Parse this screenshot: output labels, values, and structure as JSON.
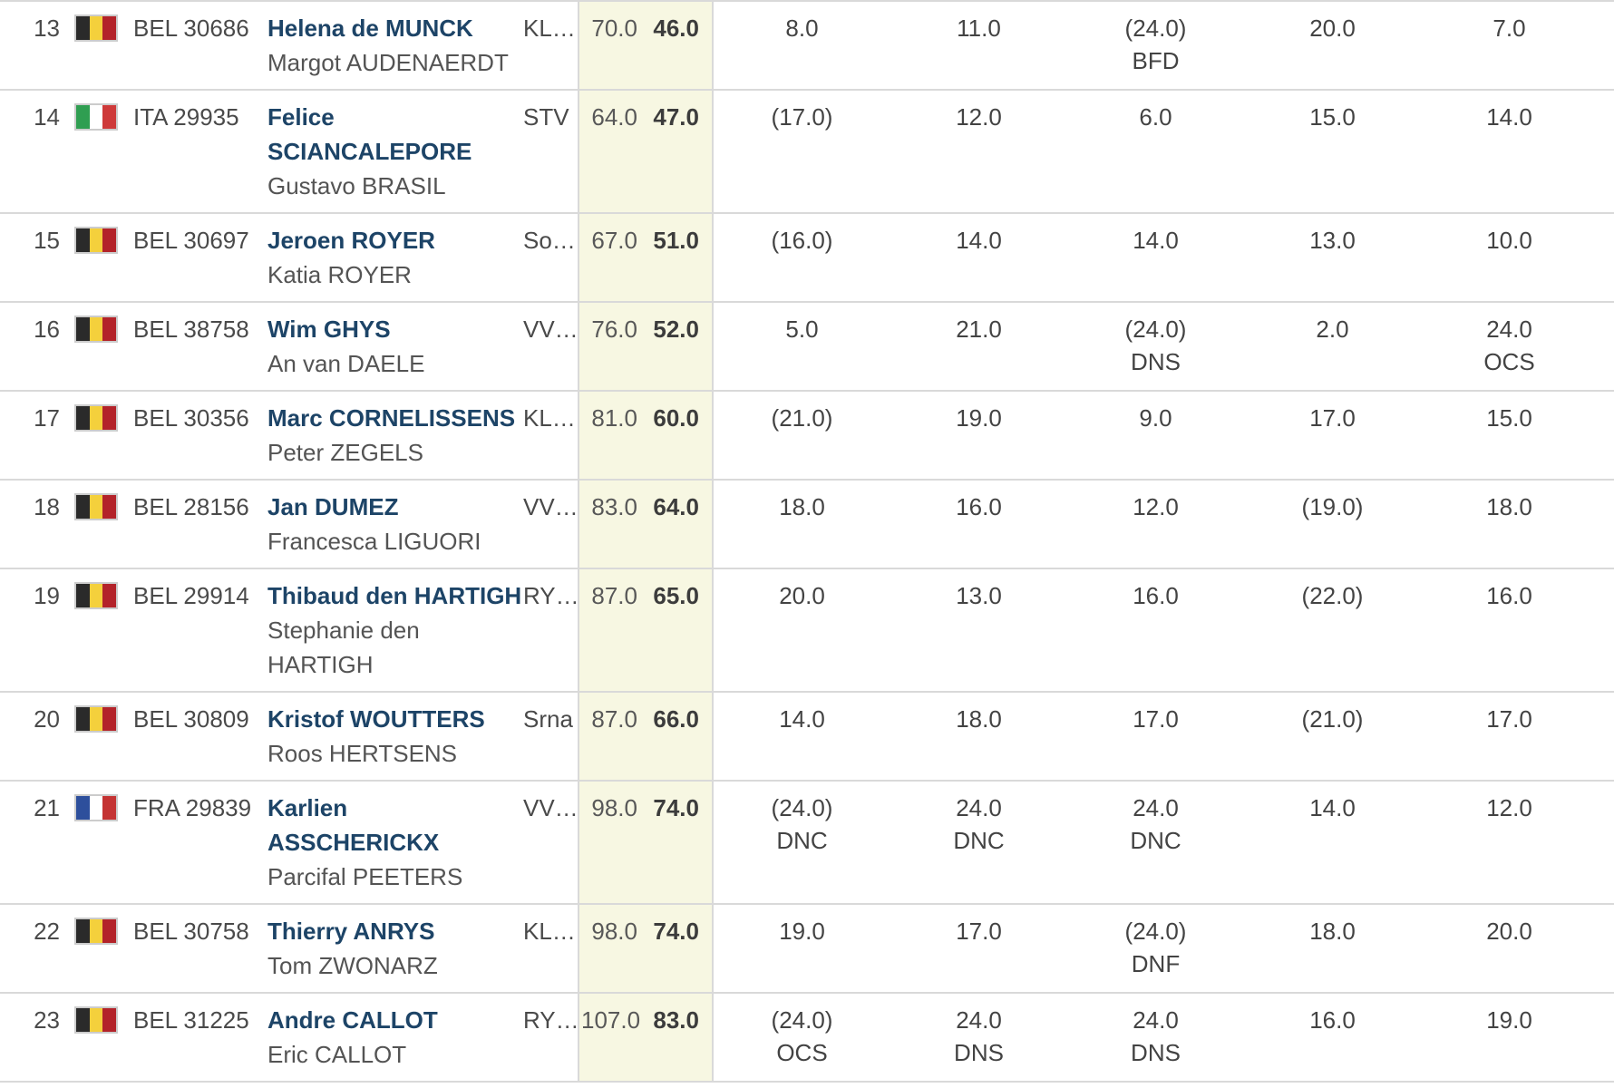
{
  "colors": {
    "row_border": "#d9d9d9",
    "totals_bg": "#f7f7e2",
    "skipper_link": "#1d4467",
    "body_text": "#4a4a4a",
    "crew_text": "#545454",
    "score_text": "#434343",
    "net_text": "#3c3c3c",
    "flag_border": "#cccccc"
  },
  "flags": {
    "BEL": [
      "#2a2a2a",
      "#f4d03c",
      "#b3232a"
    ],
    "ITA": [
      "#2f9e51",
      "#ffffff",
      "#ce3a3a"
    ],
    "FRA": [
      "#2d4f9c",
      "#ffffff",
      "#c43333"
    ]
  },
  "table": {
    "rows": [
      {
        "rank": "13",
        "country": "BEL",
        "sail": "BEL 30686",
        "skipper": "Helena de MUNCK",
        "crew": "Margot AUDENAERDT",
        "club": "KL…",
        "total": "70.0",
        "net": "46.0",
        "races": [
          {
            "score": "8.0",
            "code": ""
          },
          {
            "score": "11.0",
            "code": ""
          },
          {
            "score": "(24.0)",
            "code": "BFD"
          },
          {
            "score": "20.0",
            "code": ""
          },
          {
            "score": "7.0",
            "code": ""
          }
        ]
      },
      {
        "rank": "14",
        "country": "ITA",
        "sail": "ITA 29935",
        "skipper": "Felice\nSCIANCALEPORE",
        "crew": "Gustavo BRASIL",
        "club": "STV",
        "total": "64.0",
        "net": "47.0",
        "races": [
          {
            "score": "(17.0)",
            "code": ""
          },
          {
            "score": "12.0",
            "code": ""
          },
          {
            "score": "6.0",
            "code": ""
          },
          {
            "score": "15.0",
            "code": ""
          },
          {
            "score": "14.0",
            "code": ""
          }
        ]
      },
      {
        "rank": "15",
        "country": "BEL",
        "sail": "BEL 30697",
        "skipper": "Jeroen ROYER",
        "crew": "Katia ROYER",
        "club": "So…",
        "total": "67.0",
        "net": "51.0",
        "races": [
          {
            "score": "(16.0)",
            "code": ""
          },
          {
            "score": "14.0",
            "code": ""
          },
          {
            "score": "14.0",
            "code": ""
          },
          {
            "score": "13.0",
            "code": ""
          },
          {
            "score": "10.0",
            "code": ""
          }
        ]
      },
      {
        "rank": "16",
        "country": "BEL",
        "sail": "BEL 38758",
        "skipper": "Wim GHYS",
        "crew": "An van DAELE",
        "club": "VV…",
        "total": "76.0",
        "net": "52.0",
        "races": [
          {
            "score": "5.0",
            "code": ""
          },
          {
            "score": "21.0",
            "code": ""
          },
          {
            "score": "(24.0)",
            "code": "DNS"
          },
          {
            "score": "2.0",
            "code": ""
          },
          {
            "score": "24.0",
            "code": "OCS"
          }
        ]
      },
      {
        "rank": "17",
        "country": "BEL",
        "sail": "BEL 30356",
        "skipper": "Marc CORNELISSENS",
        "crew": "Peter ZEGELS",
        "club": "KL…",
        "total": "81.0",
        "net": "60.0",
        "races": [
          {
            "score": "(21.0)",
            "code": ""
          },
          {
            "score": "19.0",
            "code": ""
          },
          {
            "score": "9.0",
            "code": ""
          },
          {
            "score": "17.0",
            "code": ""
          },
          {
            "score": "15.0",
            "code": ""
          }
        ]
      },
      {
        "rank": "18",
        "country": "BEL",
        "sail": "BEL 28156",
        "skipper": "Jan DUMEZ",
        "crew": "Francesca LIGUORI",
        "club": "VV…",
        "total": "83.0",
        "net": "64.0",
        "races": [
          {
            "score": "18.0",
            "code": ""
          },
          {
            "score": "16.0",
            "code": ""
          },
          {
            "score": "12.0",
            "code": ""
          },
          {
            "score": "(19.0)",
            "code": ""
          },
          {
            "score": "18.0",
            "code": ""
          }
        ]
      },
      {
        "rank": "19",
        "country": "BEL",
        "sail": "BEL 29914",
        "skipper": "Thibaud den HARTIGH",
        "crew": "Stephanie den\nHARTIGH",
        "club": "RY…",
        "total": "87.0",
        "net": "65.0",
        "races": [
          {
            "score": "20.0",
            "code": ""
          },
          {
            "score": "13.0",
            "code": ""
          },
          {
            "score": "16.0",
            "code": ""
          },
          {
            "score": "(22.0)",
            "code": ""
          },
          {
            "score": "16.0",
            "code": ""
          }
        ]
      },
      {
        "rank": "20",
        "country": "BEL",
        "sail": "BEL 30809",
        "skipper": "Kristof WOUTTERS",
        "crew": "Roos HERTSENS",
        "club": "Srna",
        "total": "87.0",
        "net": "66.0",
        "races": [
          {
            "score": "14.0",
            "code": ""
          },
          {
            "score": "18.0",
            "code": ""
          },
          {
            "score": "17.0",
            "code": ""
          },
          {
            "score": "(21.0)",
            "code": ""
          },
          {
            "score": "17.0",
            "code": ""
          }
        ]
      },
      {
        "rank": "21",
        "country": "FRA",
        "sail": "FRA 29839",
        "skipper": "Karlien\nASSCHERICKX",
        "crew": "Parcifal PEETERS",
        "club": "VV…",
        "total": "98.0",
        "net": "74.0",
        "races": [
          {
            "score": "(24.0)",
            "code": "DNC"
          },
          {
            "score": "24.0",
            "code": "DNC"
          },
          {
            "score": "24.0",
            "code": "DNC"
          },
          {
            "score": "14.0",
            "code": ""
          },
          {
            "score": "12.0",
            "code": ""
          }
        ]
      },
      {
        "rank": "22",
        "country": "BEL",
        "sail": "BEL 30758",
        "skipper": "Thierry ANRYS",
        "crew": "Tom ZWONARZ",
        "club": "KL…",
        "total": "98.0",
        "net": "74.0",
        "races": [
          {
            "score": "19.0",
            "code": ""
          },
          {
            "score": "17.0",
            "code": ""
          },
          {
            "score": "(24.0)",
            "code": "DNF"
          },
          {
            "score": "18.0",
            "code": ""
          },
          {
            "score": "20.0",
            "code": ""
          }
        ]
      },
      {
        "rank": "23",
        "country": "BEL",
        "sail": "BEL 31225",
        "skipper": "Andre CALLOT",
        "crew": "Eric CALLOT",
        "club": "RY…",
        "total": "107.0",
        "net": "83.0",
        "races": [
          {
            "score": "(24.0)",
            "code": "OCS"
          },
          {
            "score": "24.0",
            "code": "DNS"
          },
          {
            "score": "24.0",
            "code": "DNS"
          },
          {
            "score": "16.0",
            "code": ""
          },
          {
            "score": "19.0",
            "code": ""
          }
        ]
      }
    ]
  }
}
